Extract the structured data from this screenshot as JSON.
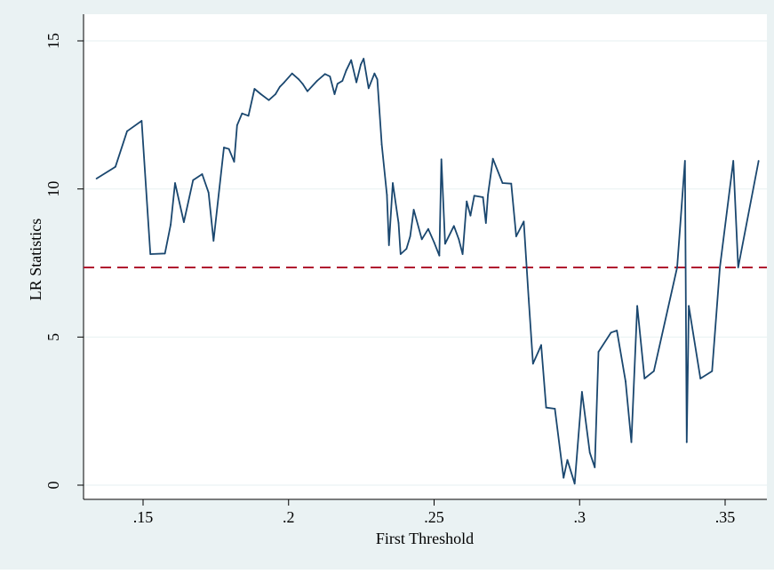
{
  "colors": {
    "outer_background": "#eaf2f3",
    "plot_background": "#ffffff",
    "gridline": "#eaf2f3",
    "series_line": "#1a476f",
    "reference_line": "#b0112f"
  },
  "chart_data": {
    "type": "line",
    "xlabel": "First Threshold",
    "ylabel": "LR Statistics",
    "xlim": [
      0.1325,
      0.3625
    ],
    "ylim": [
      0,
      15
    ],
    "grid": true,
    "legend": "none",
    "x_ticks": [
      0.15,
      0.2,
      0.25,
      0.3,
      0.35
    ],
    "x_tick_labels": [
      ".15",
      ".2",
      ".25",
      ".3",
      ".35"
    ],
    "y_ticks": [
      0,
      5,
      10,
      15
    ],
    "y_tick_labels": [
      "0",
      "5",
      "10",
      "15"
    ],
    "reference_line": {
      "orientation": "horizontal",
      "y": 7.35,
      "style": "dashed"
    },
    "series": [
      {
        "x": [
          0.134,
          0.1405,
          0.1445,
          0.1495,
          0.1525,
          0.1575,
          0.1595,
          0.161,
          0.164,
          0.1672,
          0.1703,
          0.1725,
          0.1742,
          0.1778,
          0.1795,
          0.1813,
          0.1823,
          0.184,
          0.1862,
          0.1883,
          0.1905,
          0.1932,
          0.1955,
          0.197,
          0.1985,
          0.2012,
          0.2035,
          0.2048,
          0.2065,
          0.2098,
          0.2125,
          0.2142,
          0.2158,
          0.2168,
          0.2185,
          0.2198,
          0.2215,
          0.2233,
          0.2248,
          0.2258,
          0.2275,
          0.2295,
          0.2305,
          0.232,
          0.2338,
          0.2345,
          0.2358,
          0.2378,
          0.2385,
          0.2405,
          0.2418,
          0.243,
          0.2458,
          0.248,
          0.25,
          0.2518,
          0.2525,
          0.2538,
          0.2568,
          0.2585,
          0.2598,
          0.2612,
          0.2625,
          0.2638,
          0.2668,
          0.2678,
          0.2685,
          0.2702,
          0.2735,
          0.2765,
          0.2782,
          0.2808,
          0.2825,
          0.284,
          0.2858,
          0.2868,
          0.2885,
          0.2915,
          0.2945,
          0.2958,
          0.2983,
          0.3008,
          0.3035,
          0.3052,
          0.3065,
          0.3108,
          0.3128,
          0.3158,
          0.3178,
          0.3198,
          0.3223,
          0.3255,
          0.3335,
          0.3362,
          0.3368,
          0.3375,
          0.3415,
          0.3455,
          0.3482,
          0.3528,
          0.3545,
          0.3615
        ],
        "y": [
          10.35,
          10.75,
          11.95,
          12.3,
          7.8,
          7.82,
          8.8,
          10.2,
          8.88,
          10.3,
          10.5,
          9.88,
          8.25,
          11.4,
          11.35,
          10.92,
          12.15,
          12.55,
          12.47,
          13.38,
          13.2,
          13.0,
          13.2,
          13.45,
          13.6,
          13.9,
          13.7,
          13.55,
          13.3,
          13.65,
          13.88,
          13.8,
          13.2,
          13.55,
          13.65,
          14.0,
          14.35,
          13.6,
          14.2,
          14.4,
          13.4,
          13.9,
          13.7,
          11.5,
          9.8,
          8.1,
          10.2,
          8.85,
          7.8,
          7.98,
          8.4,
          9.3,
          8.3,
          8.65,
          8.2,
          7.75,
          11.0,
          8.15,
          8.75,
          8.3,
          7.8,
          9.58,
          9.1,
          9.77,
          9.72,
          8.85,
          9.8,
          11.02,
          10.2,
          10.18,
          8.4,
          8.9,
          6.3,
          4.1,
          4.5,
          4.73,
          2.62,
          2.58,
          0.25,
          0.85,
          0.05,
          3.15,
          1.1,
          0.6,
          4.5,
          5.15,
          5.22,
          3.5,
          1.45,
          6.05,
          3.6,
          3.85,
          7.35,
          10.95,
          1.45,
          6.05,
          3.6,
          3.85,
          7.35,
          10.95,
          7.35,
          10.95
        ]
      }
    ]
  }
}
